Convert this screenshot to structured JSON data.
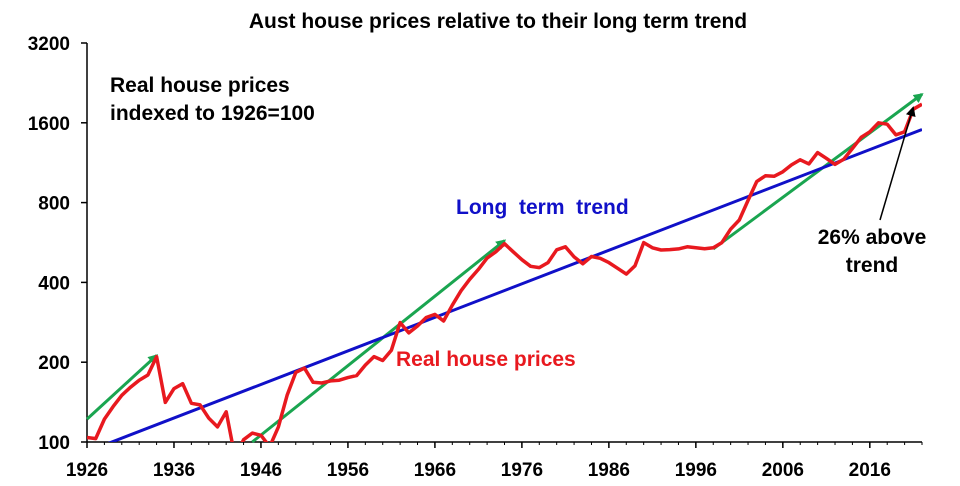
{
  "chart_data": {
    "type": "line",
    "title": "Aust house prices relative to their long term trend",
    "xlabel": "",
    "ylabel": "",
    "xlim": [
      1926,
      2022
    ],
    "ylim": [
      100,
      3200
    ],
    "y_scale": "log",
    "grid": false,
    "x_ticks": [
      "1926",
      "1936",
      "1946",
      "1956",
      "1966",
      "1976",
      "1986",
      "1996",
      "2006",
      "2016"
    ],
    "y_ticks": [
      "100",
      "200",
      "400",
      "800",
      "1600",
      "3200"
    ],
    "colors": {
      "prices": "#e8191f",
      "trend": "#1010c8",
      "arrows": "#1aa550",
      "text": "#000000"
    },
    "annotations": {
      "subtitle_line1": "Real house prices",
      "subtitle_line2": "indexed to 1926=100",
      "trend_label": "Long  term  trend",
      "prices_label": "Real house prices",
      "above_line1": "26% above",
      "above_line2": "trend"
    },
    "series": [
      {
        "name": "Real house prices",
        "x": [
          1926,
          1927,
          1928,
          1929,
          1930,
          1931,
          1932,
          1933,
          1934,
          1935,
          1936,
          1937,
          1938,
          1939,
          1940,
          1941,
          1942,
          1943,
          1944,
          1945,
          1946,
          1947,
          1948,
          1949,
          1950,
          1951,
          1952,
          1953,
          1954,
          1955,
          1956,
          1957,
          1958,
          1959,
          1960,
          1961,
          1962,
          1963,
          1964,
          1965,
          1966,
          1967,
          1968,
          1969,
          1970,
          1971,
          1972,
          1973,
          1974,
          1975,
          1976,
          1977,
          1978,
          1979,
          1980,
          1981,
          1982,
          1983,
          1984,
          1985,
          1986,
          1987,
          1988,
          1989,
          1990,
          1991,
          1992,
          1993,
          1994,
          1995,
          1996,
          1997,
          1998,
          1999,
          2000,
          2001,
          2002,
          2003,
          2004,
          2005,
          2006,
          2007,
          2008,
          2009,
          2010,
          2011,
          2012,
          2013,
          2014,
          2015,
          2016,
          2017,
          2018,
          2019,
          2020,
          2021,
          2022
        ],
        "values": [
          104,
          103,
          122,
          136,
          150,
          161,
          171,
          179,
          210,
          141,
          159,
          166,
          140,
          138,
          123,
          114,
          130,
          88,
          102,
          108,
          106,
          96,
          114,
          150,
          183,
          190,
          168,
          167,
          170,
          171,
          175,
          178,
          195,
          210,
          203,
          222,
          282,
          258,
          274,
          295,
          303,
          286,
          328,
          372,
          411,
          448,
          494,
          522,
          560,
          522,
          487,
          460,
          455,
          475,
          531,
          545,
          499,
          470,
          501,
          493,
          475,
          452,
          430,
          462,
          565,
          540,
          530,
          532,
          535,
          545,
          540,
          536,
          540,
          565,
          635,
          688,
          815,
          960,
          1010,
          1005,
          1045,
          1110,
          1160,
          1120,
          1235,
          1175,
          1115,
          1165,
          1280,
          1410,
          1480,
          1600,
          1580,
          1440,
          1480,
          1800,
          1880
        ]
      },
      {
        "name": "Long term trend",
        "x": [
          1926,
          2022
        ],
        "values": [
          92,
          1510
        ]
      }
    ],
    "trend_arrows": [
      {
        "x": [
          1926,
          1934
        ],
        "values": [
          122,
          212
        ]
      },
      {
        "x": [
          1945,
          1974
        ],
        "values": [
          100,
          575
        ]
      },
      {
        "x": [
          1998,
          2022
        ],
        "values": [
          535,
          2050
        ]
      }
    ]
  }
}
